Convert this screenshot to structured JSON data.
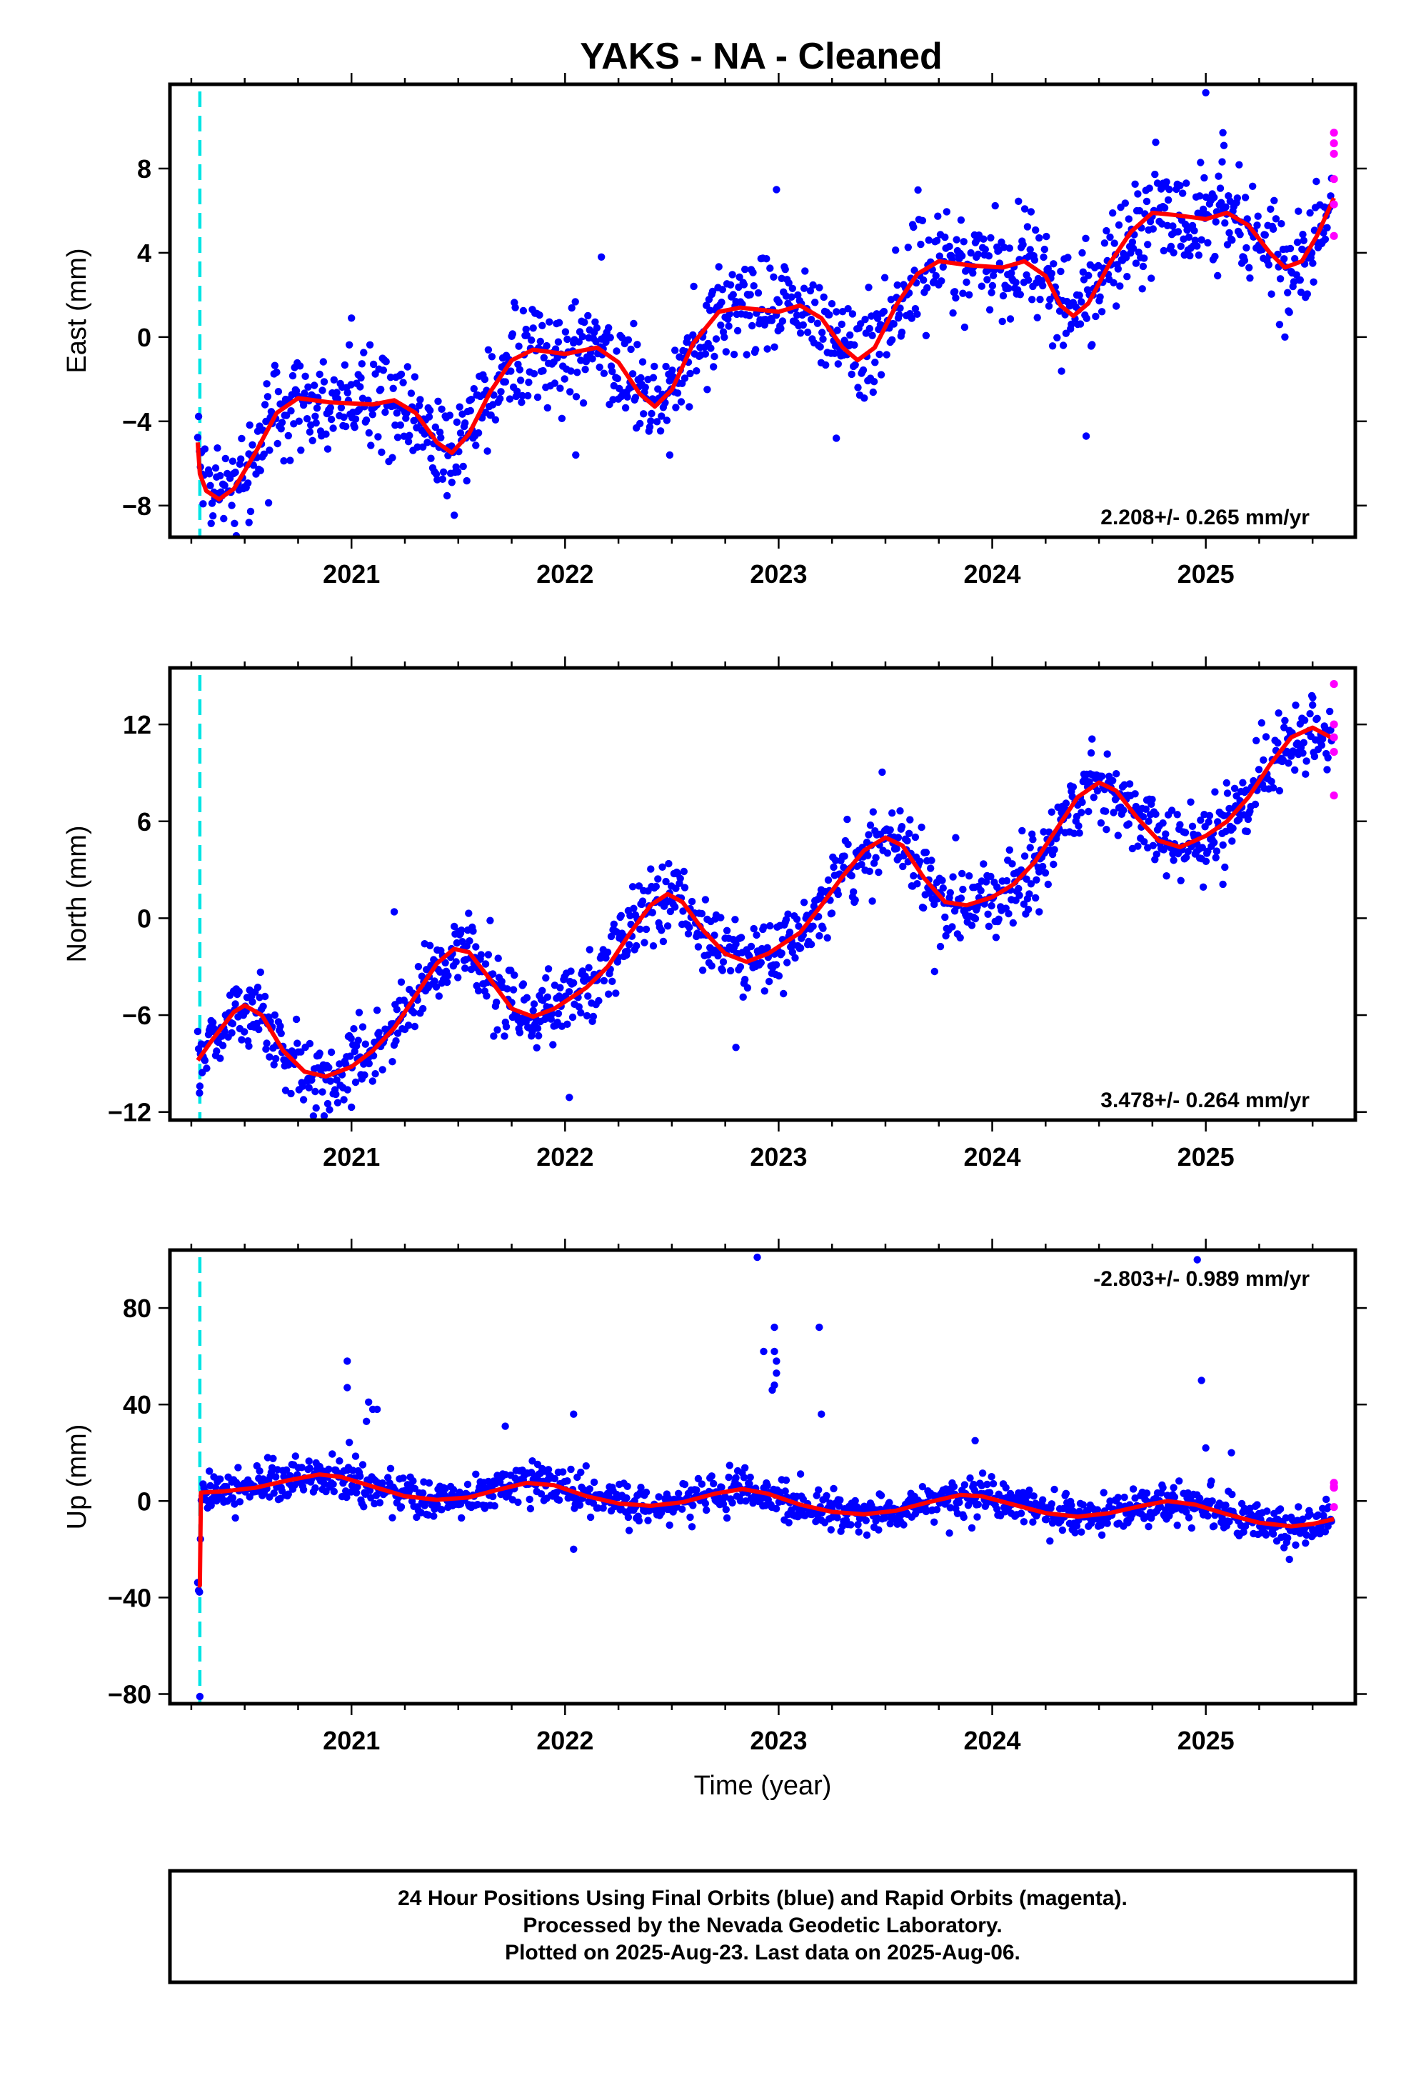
{
  "figure_title": "YAKS  - NA - Cleaned",
  "colors": {
    "final": "#0000ff",
    "rapid": "#ff00ff",
    "model": "#ff0000",
    "event_line": "#00e5e5"
  },
  "footer": {
    "line1": "24 Hour Positions Using Final Orbits (blue) and Rapid Orbits (magenta).",
    "line2": "Processed by the Nevada Geodetic Laboratory.",
    "line3": "Plotted on 2025-Aug-23. Last data on 2025-Aug-06."
  },
  "chart_data": [
    {
      "type": "scatter",
      "component": "east",
      "ylabel": "East (mm)",
      "xlabel": "",
      "xlim": [
        2020.15,
        2025.7
      ],
      "ylim": [
        -9.5,
        12
      ],
      "xticks": [
        2021,
        2022,
        2023,
        2024,
        2025
      ],
      "yticks": [
        -8,
        -4,
        0,
        4,
        8
      ],
      "rate_label": "2.208+/- 0.265 mm/yr",
      "rate_position": "bottom-right",
      "event_line_x": 2020.29,
      "model": [
        [
          2020.28,
          -5.0
        ],
        [
          2020.29,
          -6.5
        ],
        [
          2020.32,
          -7.3
        ],
        [
          2020.38,
          -7.7
        ],
        [
          2020.45,
          -7.2
        ],
        [
          2020.55,
          -5.5
        ],
        [
          2020.65,
          -3.6
        ],
        [
          2020.75,
          -2.9
        ],
        [
          2020.9,
          -3.1
        ],
        [
          2021.1,
          -3.2
        ],
        [
          2021.2,
          -3.0
        ],
        [
          2021.3,
          -3.6
        ],
        [
          2021.4,
          -5.0
        ],
        [
          2021.47,
          -5.5
        ],
        [
          2021.55,
          -4.6
        ],
        [
          2021.65,
          -2.6
        ],
        [
          2021.75,
          -1.1
        ],
        [
          2021.85,
          -0.6
        ],
        [
          2022.0,
          -0.8
        ],
        [
          2022.15,
          -0.5
        ],
        [
          2022.25,
          -1.2
        ],
        [
          2022.35,
          -2.7
        ],
        [
          2022.42,
          -3.3
        ],
        [
          2022.5,
          -2.5
        ],
        [
          2022.6,
          -0.3
        ],
        [
          2022.72,
          1.2
        ],
        [
          2022.82,
          1.4
        ],
        [
          2023.0,
          1.2
        ],
        [
          2023.1,
          1.5
        ],
        [
          2023.2,
          0.9
        ],
        [
          2023.3,
          -0.5
        ],
        [
          2023.37,
          -1.1
        ],
        [
          2023.45,
          -0.5
        ],
        [
          2023.55,
          1.5
        ],
        [
          2023.65,
          3.0
        ],
        [
          2023.75,
          3.6
        ],
        [
          2023.9,
          3.4
        ],
        [
          2024.05,
          3.3
        ],
        [
          2024.15,
          3.6
        ],
        [
          2024.25,
          2.9
        ],
        [
          2024.32,
          1.5
        ],
        [
          2024.38,
          1.0
        ],
        [
          2024.45,
          1.6
        ],
        [
          2024.55,
          3.5
        ],
        [
          2024.65,
          5.0
        ],
        [
          2024.75,
          5.9
        ],
        [
          2024.85,
          5.8
        ],
        [
          2025.0,
          5.6
        ],
        [
          2025.1,
          5.9
        ],
        [
          2025.2,
          5.3
        ],
        [
          2025.3,
          4.0
        ],
        [
          2025.37,
          3.3
        ],
        [
          2025.45,
          3.6
        ],
        [
          2025.52,
          4.8
        ],
        [
          2025.6,
          6.6
        ]
      ],
      "series": [
        {
          "name": "",
          "style": "final",
          "x_start": 2020.28,
          "x_end": 2025.59,
          "step": 0.0042,
          "noise": 1.2,
          "outliers": [
            [
              2025.0,
              11.6
            ],
            [
              2025.08,
              9.7
            ],
            [
              2022.99,
              7.0
            ],
            [
              2024.44,
              -4.7
            ],
            [
              2022.05,
              -5.6
            ],
            [
              2020.52,
              -8.8
            ],
            [
              2022.49,
              -5.6
            ],
            [
              2021.47,
              -6.9
            ],
            [
              2021.0,
              0.9
            ],
            [
              2022.17,
              3.8
            ],
            [
              2023.27,
              -4.8
            ],
            [
              2024.8,
              7.3
            ]
          ]
        },
        {
          "name": "",
          "style": "rapid",
          "points": [
            [
              2025.6,
              9.7
            ],
            [
              2025.6,
              9.2
            ],
            [
              2025.6,
              8.7
            ],
            [
              2025.6,
              7.5
            ],
            [
              2025.6,
              6.3
            ],
            [
              2025.6,
              4.8
            ]
          ]
        }
      ]
    },
    {
      "type": "scatter",
      "component": "north",
      "ylabel": "North (mm)",
      "xlabel": "",
      "xlim": [
        2020.15,
        2025.7
      ],
      "ylim": [
        -12.5,
        15.5
      ],
      "xticks": [
        2021,
        2022,
        2023,
        2024,
        2025
      ],
      "yticks": [
        -12,
        -6,
        0,
        6,
        12
      ],
      "rate_label": "3.478+/- 0.264 mm/yr",
      "rate_position": "bottom-right",
      "event_line_x": 2020.29,
      "model": [
        [
          2020.28,
          -8.8
        ],
        [
          2020.35,
          -7.5
        ],
        [
          2020.45,
          -5.8
        ],
        [
          2020.5,
          -5.4
        ],
        [
          2020.58,
          -6.0
        ],
        [
          2020.68,
          -8.2
        ],
        [
          2020.78,
          -9.5
        ],
        [
          2020.88,
          -9.8
        ],
        [
          2021.0,
          -9.2
        ],
        [
          2021.1,
          -8.2
        ],
        [
          2021.2,
          -6.8
        ],
        [
          2021.3,
          -4.8
        ],
        [
          2021.4,
          -2.8
        ],
        [
          2021.48,
          -1.9
        ],
        [
          2021.55,
          -2.1
        ],
        [
          2021.65,
          -3.8
        ],
        [
          2021.75,
          -5.6
        ],
        [
          2021.85,
          -6.1
        ],
        [
          2021.95,
          -5.6
        ],
        [
          2022.1,
          -4.3
        ],
        [
          2022.2,
          -3.0
        ],
        [
          2022.3,
          -1.0
        ],
        [
          2022.4,
          0.8
        ],
        [
          2022.48,
          1.5
        ],
        [
          2022.55,
          1.0
        ],
        [
          2022.65,
          -0.8
        ],
        [
          2022.75,
          -2.2
        ],
        [
          2022.85,
          -2.7
        ],
        [
          2022.95,
          -2.2
        ],
        [
          2023.1,
          -0.9
        ],
        [
          2023.2,
          0.8
        ],
        [
          2023.3,
          2.6
        ],
        [
          2023.4,
          4.2
        ],
        [
          2023.5,
          5.0
        ],
        [
          2023.58,
          4.5
        ],
        [
          2023.68,
          2.5
        ],
        [
          2023.78,
          1.0
        ],
        [
          2023.88,
          0.8
        ],
        [
          2024.0,
          1.3
        ],
        [
          2024.1,
          2.1
        ],
        [
          2024.2,
          3.5
        ],
        [
          2024.3,
          5.5
        ],
        [
          2024.4,
          7.5
        ],
        [
          2024.5,
          8.4
        ],
        [
          2024.58,
          7.9
        ],
        [
          2024.68,
          6.2
        ],
        [
          2024.78,
          4.8
        ],
        [
          2024.88,
          4.4
        ],
        [
          2025.0,
          5.1
        ],
        [
          2025.1,
          6.0
        ],
        [
          2025.2,
          7.5
        ],
        [
          2025.3,
          9.5
        ],
        [
          2025.4,
          11.2
        ],
        [
          2025.5,
          11.8
        ],
        [
          2025.6,
          11.1
        ]
      ],
      "series": [
        {
          "name": "",
          "style": "final",
          "x_start": 2020.28,
          "x_end": 2025.59,
          "step": 0.0042,
          "noise": 1.1,
          "outliers": [
            [
              2020.29,
              -10.4
            ],
            [
              2022.02,
              -11.1
            ],
            [
              2021.0,
              -11.7
            ],
            [
              2022.8,
              -8.0
            ],
            [
              2023.73,
              -3.3
            ],
            [
              2024.22,
              0.4
            ],
            [
              2025.08,
              2.1
            ],
            [
              2021.2,
              0.4
            ],
            [
              2025.5,
              13.2
            ]
          ]
        },
        {
          "name": "",
          "style": "rapid",
          "points": [
            [
              2025.6,
              14.5
            ],
            [
              2025.6,
              12.0
            ],
            [
              2025.6,
              11.2
            ],
            [
              2025.6,
              10.3
            ],
            [
              2025.6,
              7.6
            ]
          ]
        }
      ]
    },
    {
      "type": "scatter",
      "component": "up",
      "ylabel": "Up (mm)",
      "xlabel": "Time (year)",
      "xlim": [
        2020.15,
        2025.7
      ],
      "ylim": [
        -84,
        104
      ],
      "xticks": [
        2021,
        2022,
        2023,
        2024,
        2025
      ],
      "yticks": [
        -80,
        -40,
        0,
        40,
        80
      ],
      "rate_label": "-2.803+/- 0.989 mm/yr",
      "rate_position": "top-right",
      "event_line_x": 2020.29,
      "model": [
        [
          2020.28,
          -35
        ],
        [
          2020.29,
          -35
        ],
        [
          2020.295,
          3.5
        ],
        [
          2020.4,
          4.0
        ],
        [
          2020.55,
          5.5
        ],
        [
          2020.7,
          8.5
        ],
        [
          2020.85,
          11.0
        ],
        [
          2020.95,
          10.0
        ],
        [
          2021.1,
          6.0
        ],
        [
          2021.25,
          2.0
        ],
        [
          2021.4,
          0.5
        ],
        [
          2021.55,
          1.5
        ],
        [
          2021.7,
          5.0
        ],
        [
          2021.82,
          7.5
        ],
        [
          2021.95,
          6.5
        ],
        [
          2022.1,
          2.0
        ],
        [
          2022.25,
          -1.0
        ],
        [
          2022.4,
          -2.0
        ],
        [
          2022.55,
          -0.5
        ],
        [
          2022.7,
          3.0
        ],
        [
          2022.83,
          5.0
        ],
        [
          2022.95,
          3.0
        ],
        [
          2023.1,
          -1.5
        ],
        [
          2023.25,
          -4.5
        ],
        [
          2023.4,
          -5.5
        ],
        [
          2023.55,
          -4.0
        ],
        [
          2023.7,
          -0.5
        ],
        [
          2023.85,
          2.5
        ],
        [
          2023.95,
          2.0
        ],
        [
          2024.1,
          -1.5
        ],
        [
          2024.25,
          -5.0
        ],
        [
          2024.4,
          -6.5
        ],
        [
          2024.55,
          -5.0
        ],
        [
          2024.7,
          -2.0
        ],
        [
          2024.82,
          0.0
        ],
        [
          2024.95,
          -1.5
        ],
        [
          2025.1,
          -5.5
        ],
        [
          2025.25,
          -9.0
        ],
        [
          2025.4,
          -10.5
        ],
        [
          2025.5,
          -9.5
        ],
        [
          2025.6,
          -7.5
        ]
      ],
      "series": [
        {
          "name": "",
          "style": "final",
          "x_start": 2020.28,
          "x_end": 2025.59,
          "step": 0.0042,
          "noise": 4.0,
          "outliers": [
            [
              2022.9,
              101
            ],
            [
              2022.98,
              72
            ],
            [
              2023.19,
              72
            ],
            [
              2022.98,
              62
            ],
            [
              2022.93,
              62
            ],
            [
              2022.99,
              58
            ],
            [
              2022.99,
              53
            ],
            [
              2022.98,
              48
            ],
            [
              2022.97,
              46
            ],
            [
              2023.2,
              36
            ],
            [
              2020.98,
              58
            ],
            [
              2020.98,
              47
            ],
            [
              2021.08,
              41
            ],
            [
              2021.1,
              38
            ],
            [
              2021.12,
              38
            ],
            [
              2021.07,
              33
            ],
            [
              2022.04,
              36
            ],
            [
              2022.04,
              -20
            ],
            [
              2024.98,
              50
            ],
            [
              2025.0,
              22
            ],
            [
              2025.12,
              20
            ],
            [
              2023.92,
              25
            ],
            [
              2021.72,
              31
            ],
            [
              2024.96,
              100
            ],
            [
              2020.29,
              -81
            ]
          ]
        },
        {
          "name": "",
          "style": "rapid",
          "points": [
            [
              2025.6,
              7.5
            ],
            [
              2025.6,
              6.0
            ],
            [
              2025.6,
              5.5
            ],
            [
              2025.6,
              -2.5
            ]
          ]
        }
      ]
    }
  ]
}
